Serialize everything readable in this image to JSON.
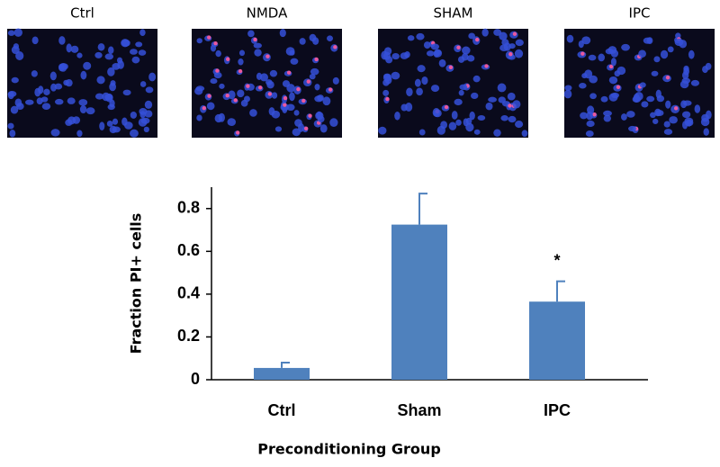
{
  "panels": [
    {
      "label": "Ctrl"
    },
    {
      "label": "NMDA"
    },
    {
      "label": "SHAM"
    },
    {
      "label": "IPC"
    }
  ],
  "chart_data": {
    "type": "bar",
    "y_label": "Fraction PI+ cells",
    "x_label": "Preconditioning Group",
    "categories": [
      "Ctrl",
      "Sham",
      "IPC"
    ],
    "values": [
      0.055,
      0.725,
      0.365
    ],
    "errors": [
      0.025,
      0.145,
      0.095
    ],
    "significance": [
      null,
      null,
      "*"
    ],
    "color": "#4f81bd",
    "ylim": [
      0,
      0.9
    ],
    "yticks": [
      0,
      0.2,
      0.4,
      0.6,
      0.8
    ]
  }
}
